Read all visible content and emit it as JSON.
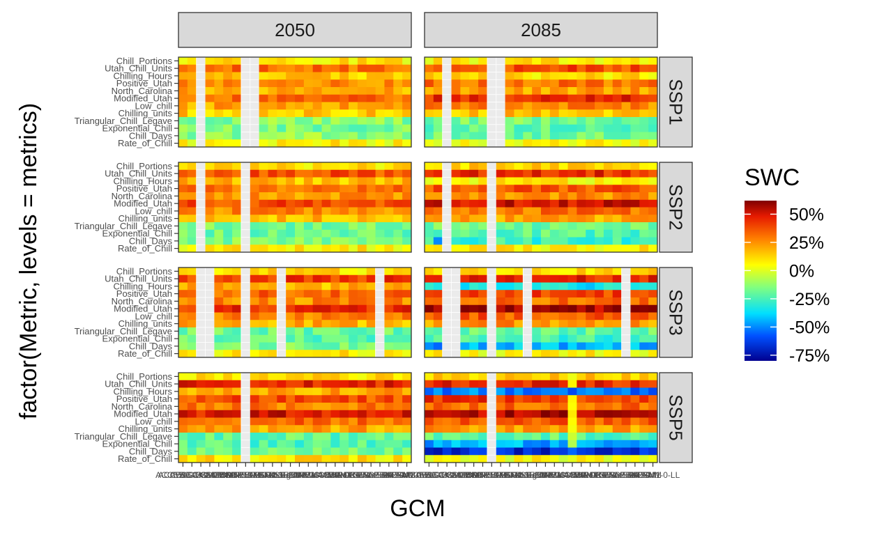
{
  "chart_data": {
    "type": "heatmap",
    "title": "",
    "xlabel": "GCM",
    "ylabel": "factor(Metric, levels = metrics)",
    "column_facets": [
      "2050",
      "2085"
    ],
    "row_facets": [
      "SSP1",
      "SSP2",
      "SSP3",
      "SSP5"
    ],
    "metrics": [
      "Chill_Portions",
      "Utah_Chill_Units",
      "Chilling_Hours",
      "Positive_Utah",
      "North_Carolina",
      "Modified_Utah",
      "Low_chill",
      "Chilling_units",
      "Triangular_Chill_Legave",
      "Exponential_Chill",
      "Chill_Days",
      "Rate_of_Chill"
    ],
    "x_tick_label_overlap": [
      "ACCESS-CM2",
      "ACCESS-ESM1-5",
      "AWI-CM-1-1-MR",
      "BCC-CSM2-MR",
      "CanESM5",
      "CESM2",
      "CMCC-ESM2",
      "CNRM-CM6-1",
      "CNRM-ESM2-1",
      "EC-Earth3",
      "FGOALS-g3",
      "GFDL-ESM4",
      "GISS-E2-1-G",
      "HadGEM3",
      "INM-CM4-8",
      "INM-CM5-0",
      "IPSL-CM6A-LR",
      "KACE-1-0-G",
      "MIROC6",
      "MIROC-ES2L",
      "MPI-ESM1-2-HR",
      "MPI-ESM1-2-LR",
      "MRI-ESM2-0",
      "NorESM2-MM",
      "TaiESM1",
      "UKESM1-0-LL"
    ],
    "n_gcm": 26,
    "missing_gcms": {
      "2050": {
        "SSP1": [
          2,
          7,
          8
        ],
        "SSP2": [
          2,
          7
        ],
        "SSP3": [
          2,
          3,
          7,
          11,
          22
        ],
        "SSP5": [
          7
        ]
      },
      "2085": {
        "SSP1": [
          2,
          7,
          8
        ],
        "SSP2": [
          2,
          7
        ],
        "SSP3": [
          2,
          3,
          7,
          11,
          22
        ],
        "SSP5": [
          7
        ]
      }
    },
    "metric_profile_2050": [
      10,
      40,
      18,
      32,
      25,
      42,
      28,
      18,
      -18,
      -20,
      -16,
      8
    ],
    "metric_profile_2085": {
      "SSP1": [
        8,
        38,
        10,
        30,
        22,
        44,
        27,
        16,
        -18,
        -22,
        -18,
        6
      ],
      "SSP2": [
        12,
        40,
        6,
        33,
        24,
        46,
        28,
        18,
        -16,
        -20,
        -24,
        7
      ],
      "SSP3": [
        10,
        38,
        -28,
        34,
        26,
        48,
        30,
        20,
        -16,
        -22,
        -36,
        5
      ],
      "SSP5": [
        10,
        34,
        -40,
        32,
        24,
        44,
        28,
        18,
        -16,
        -35,
        -52,
        4
      ]
    },
    "notable_cells": [
      {
        "facet": "2085 SSP5",
        "metric": "Chill_Days",
        "gcm_index": 1,
        "value": -75
      },
      {
        "facet": "2085 SSP5",
        "metric": "Chill_Days",
        "gcm_index": 16,
        "value": -55
      },
      {
        "facet": "2085 SSP3",
        "metric": "Chill_Days",
        "gcm_index": 1,
        "value": -55
      },
      {
        "facet": "2085 SSP2",
        "metric": "Chill_Days",
        "gcm_index": 1,
        "value": -50
      },
      {
        "facet": "2085 SSP5",
        "metric": "Chilling_Hours",
        "gcm_index": 16,
        "value": -60
      }
    ],
    "legend": {
      "title": "SWC",
      "placement": "right",
      "breaks": [
        "50%",
        "25%",
        "0%",
        "-25%",
        "-50%",
        "-75%"
      ],
      "break_values": [
        50,
        25,
        0,
        -25,
        -50,
        -75
      ],
      "limits": [
        -80,
        62
      ],
      "colors": [
        "#00008F",
        "#0050FF",
        "#00DFFF",
        "#80FF80",
        "#FFFF00",
        "#FF8000",
        "#E61A00",
        "#800000"
      ],
      "color_values": [
        -80,
        -58,
        -38,
        -15,
        5,
        28,
        48,
        62
      ]
    },
    "grid": true,
    "panel_background": "#ffffff",
    "strip_fill": "#d9d9d9",
    "missing_fill": "#ebebeb"
  }
}
